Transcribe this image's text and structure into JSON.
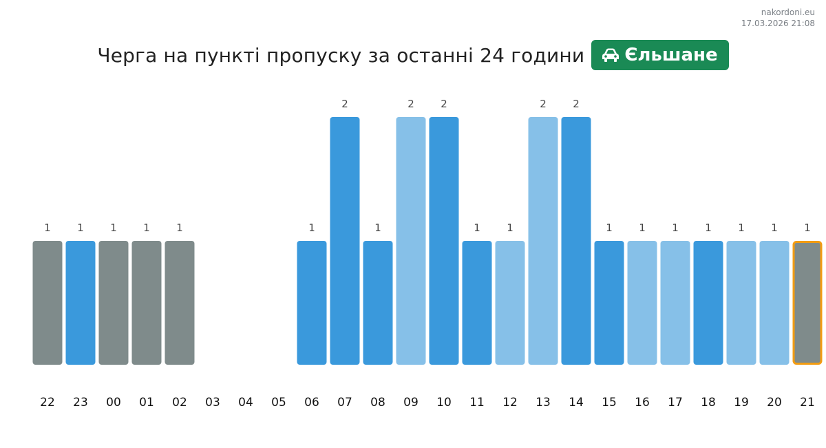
{
  "header": {
    "site": "nakordoni.eu",
    "timestamp": "17.03.2026 21:08",
    "title": "Черга на пункті пропуску за останні 24 години",
    "badge_label": "Єльшане",
    "badge_icon": "car-icon"
  },
  "colors": {
    "gray": "#7f8b8b",
    "blue": "#3a99dc",
    "light_blue": "#86c0e8",
    "highlight_border": "#f39c12",
    "badge_bg": "#1a8a55"
  },
  "chart_data": {
    "type": "bar",
    "title": "Черга на пункті пропуску за останні 24 години",
    "categories": [
      "22",
      "23",
      "00",
      "01",
      "02",
      "03",
      "04",
      "05",
      "06",
      "07",
      "08",
      "09",
      "10",
      "11",
      "12",
      "13",
      "14",
      "15",
      "16",
      "17",
      "18",
      "19",
      "20",
      "21"
    ],
    "values": [
      1,
      1,
      1,
      1,
      1,
      0,
      0,
      0,
      1,
      2,
      1,
      2,
      2,
      1,
      1,
      2,
      2,
      1,
      1,
      1,
      1,
      1,
      1,
      1
    ],
    "data_labels": [
      "1",
      "1",
      "1",
      "1",
      "1",
      "",
      "",
      "",
      "1",
      "2",
      "1",
      "2",
      "2",
      "1",
      "1",
      "2",
      "2",
      "1",
      "1",
      "1",
      "1",
      "1",
      "1",
      "1"
    ],
    "bar_colors": [
      "gray",
      "blue",
      "gray",
      "gray",
      "gray",
      "",
      "",
      "",
      "blue",
      "blue",
      "blue",
      "light_blue",
      "blue",
      "blue",
      "light_blue",
      "light_blue",
      "blue",
      "blue",
      "light_blue",
      "light_blue",
      "blue",
      "light_blue",
      "light_blue",
      "gray"
    ],
    "highlighted_category": "21",
    "ylim": [
      0,
      2
    ],
    "grid": false,
    "legend": "none",
    "xlabel": "",
    "ylabel": ""
  }
}
